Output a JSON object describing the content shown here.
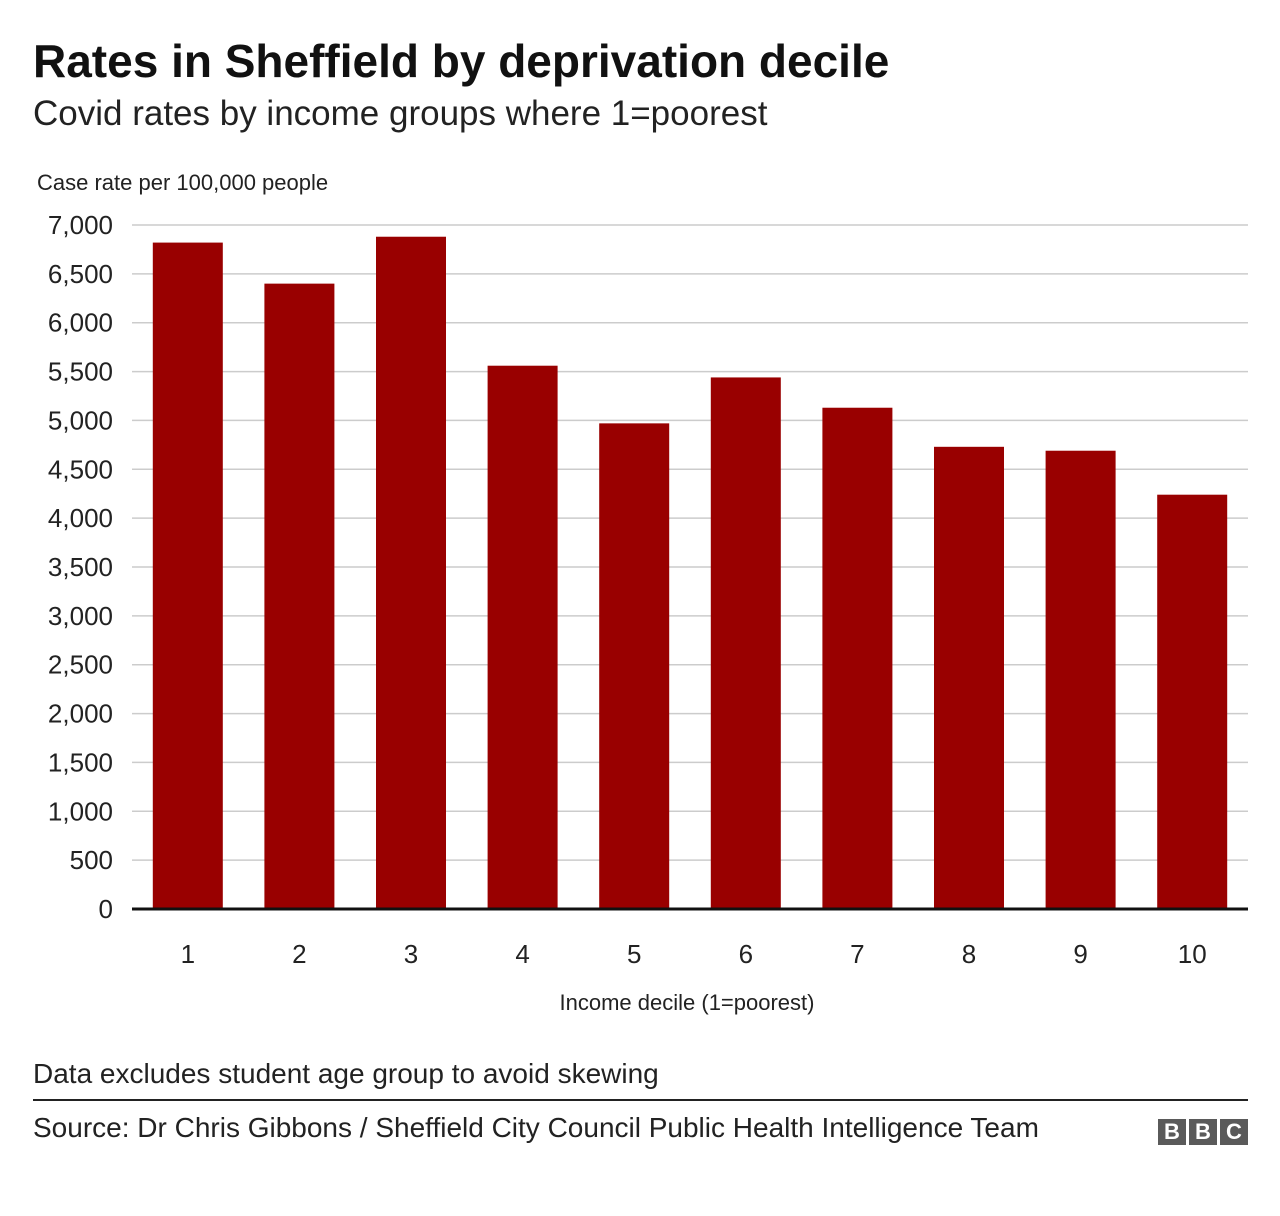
{
  "title": "Rates in Sheffield by deprivation decile",
  "subtitle": "Covid rates by income groups where 1=poorest",
  "note": "Data excludes student age group to avoid skewing",
  "source": "Source: Dr Chris Gibbons / Sheffield City Council Public Health Intelligence Team",
  "logo": {
    "letters": [
      "B",
      "B",
      "C"
    ],
    "icon": "bbc-logo"
  },
  "colors": {
    "bar": "#990000",
    "grid": "#cccccc",
    "axis": "#111111",
    "text": "#222222"
  },
  "chart_data": {
    "type": "bar",
    "categories": [
      "1",
      "2",
      "3",
      "4",
      "5",
      "6",
      "7",
      "8",
      "9",
      "10"
    ],
    "values": [
      6820,
      6400,
      6880,
      5560,
      4970,
      5440,
      5130,
      4730,
      4690,
      4240
    ],
    "ylabel": "Case rate per 100,000 people",
    "xlabel": "Income decile (1=poorest)",
    "ylim": [
      0,
      7000
    ],
    "yticks": [
      0,
      500,
      1000,
      1500,
      2000,
      2500,
      3000,
      3500,
      4000,
      4500,
      5000,
      5500,
      6000,
      6500,
      7000
    ],
    "ytick_labels": [
      "0",
      "500",
      "1,000",
      "1,500",
      "2,000",
      "2,500",
      "3,000",
      "3,500",
      "4,000",
      "4,500",
      "5,000",
      "5,500",
      "6,000",
      "6,500",
      "7,000"
    ],
    "grid": true,
    "legend": "none"
  }
}
